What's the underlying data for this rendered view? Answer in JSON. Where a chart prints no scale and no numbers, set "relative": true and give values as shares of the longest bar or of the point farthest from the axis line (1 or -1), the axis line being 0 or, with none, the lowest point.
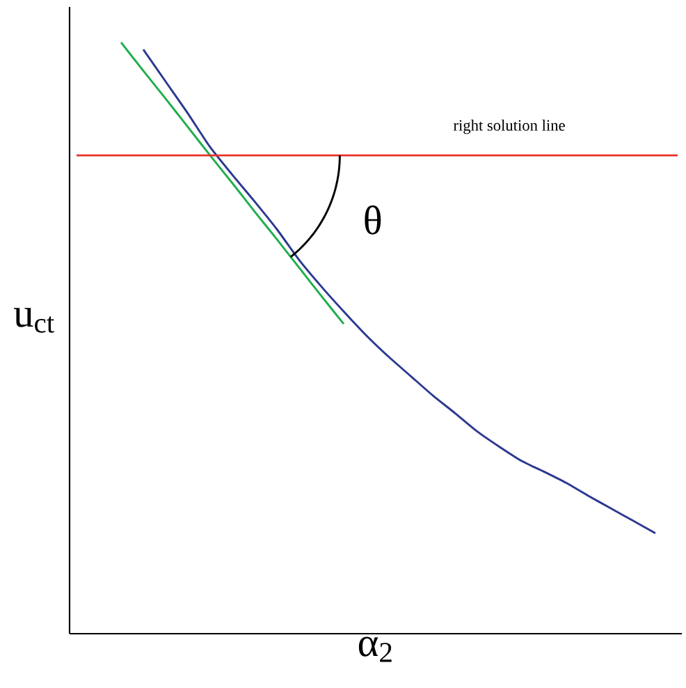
{
  "chart_data": {
    "type": "line",
    "relative": true,
    "xlabel": "α$_{2}$",
    "ylabel": "u$_{ct}$",
    "tick_labels": false,
    "marker": "none",
    "line_style": "solid",
    "categories": [
      null,
      null,
      null,
      null,
      null,
      null,
      null,
      null,
      null,
      null,
      null,
      null,
      null,
      null,
      null,
      null,
      null,
      null,
      null,
      null,
      null,
      null,
      null,
      null,
      null,
      null,
      null,
      null
    ],
    "series": [
      {
        "color": "#2b3990",
        "values": [
          null,
          null,
          null,
          0.988,
          0.934,
          0.88,
          0.823,
          0.776,
          0.731,
          0.684,
          0.632,
          0.587,
          0.545,
          0.505,
          0.469,
          0.436,
          0.403,
          0.373,
          0.342,
          0.316,
          0.292,
          0.274,
          0.255,
          0.233,
          0.212,
          0.191,
          0.17,
          null
        ]
      },
      {
        "color": "#1fae4b",
        "values": [
          null,
          null,
          1.0,
          0.952,
          0.905,
          0.857,
          0.809,
          0.762,
          0.714,
          0.667,
          0.619,
          0.571,
          0.524,
          null,
          null,
          null,
          null,
          null,
          null,
          null,
          null,
          null,
          null,
          null,
          null,
          null,
          null,
          null
        ]
      },
      {
        "name": "right solution line",
        "color": "#e8302a",
        "values": [
          0.809,
          0.809,
          0.809,
          0.809,
          0.809,
          0.809,
          0.809,
          0.809,
          0.809,
          0.809,
          0.809,
          0.809,
          0.809,
          0.809,
          0.809,
          0.809,
          0.809,
          0.809,
          0.809,
          0.809,
          0.809,
          0.809,
          0.809,
          0.809,
          0.809,
          0.809,
          0.809,
          0.809
        ]
      }
    ],
    "annotations": [
      "θ"
    ]
  }
}
